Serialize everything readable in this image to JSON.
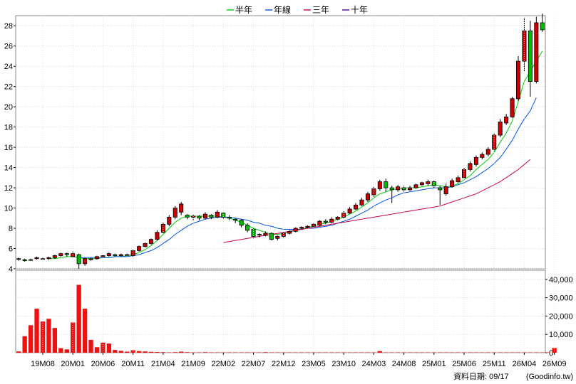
{
  "chart_data": [
    {
      "type": "candlestick",
      "title": "",
      "xlabel": "",
      "ylabel": "",
      "ylim": [
        4,
        29
      ],
      "y_ticks": [
        "4",
        "6",
        "8",
        "10",
        "12",
        "14",
        "16",
        "18",
        "20",
        "22",
        "24",
        "26",
        "28"
      ],
      "x_tick_labels": [
        "19M08",
        "20M01",
        "20M06",
        "20M11",
        "21M04",
        "21M09",
        "22M02",
        "22M07",
        "22M12",
        "23M05",
        "23M10",
        "24M03",
        "24M08",
        "25M01",
        "25M06",
        "25M11",
        "26M04",
        "26M09"
      ],
      "x_tick_index": [
        4,
        9,
        14,
        19,
        24,
        29,
        34,
        39,
        44,
        49,
        54,
        59,
        64,
        69,
        74,
        79,
        84,
        89
      ],
      "legend": [
        {
          "label": "半年",
          "color": "#00cc00"
        },
        {
          "label": "年線",
          "color": "#0055dd"
        },
        {
          "label": "三年",
          "color": "#cc0055"
        },
        {
          "label": "十年",
          "color": "#550099"
        }
      ],
      "up_color": "#cc0000",
      "down_color": "#00bb00",
      "candles": [
        [
          5.0,
          5.0,
          4.8,
          5.1
        ],
        [
          4.9,
          4.8,
          4.7,
          5.0
        ],
        [
          4.9,
          4.9,
          4.8,
          5.0
        ],
        [
          5.0,
          5.1,
          4.9,
          5.2
        ],
        [
          5.0,
          5.0,
          4.9,
          5.1
        ],
        [
          5.0,
          5.1,
          4.9,
          5.2
        ],
        [
          5.1,
          5.3,
          5.0,
          5.4
        ],
        [
          5.3,
          5.5,
          5.2,
          5.6
        ],
        [
          5.5,
          5.4,
          5.2,
          5.6
        ],
        [
          5.2,
          5.5,
          5.1,
          5.7
        ],
        [
          5.4,
          4.5,
          4.0,
          5.5
        ],
        [
          4.5,
          5.0,
          4.3,
          5.1
        ],
        [
          4.9,
          5.0,
          4.8,
          5.1
        ],
        [
          5.0,
          5.2,
          4.9,
          5.3
        ],
        [
          5.2,
          5.3,
          5.1,
          5.4
        ],
        [
          5.3,
          5.5,
          5.2,
          5.6
        ],
        [
          5.4,
          5.3,
          5.2,
          5.5
        ],
        [
          5.3,
          5.4,
          5.2,
          5.5
        ],
        [
          5.4,
          5.4,
          5.3,
          5.5
        ],
        [
          5.3,
          5.8,
          5.2,
          5.9
        ],
        [
          5.8,
          6.2,
          5.7,
          6.3
        ],
        [
          6.2,
          6.5,
          6.1,
          6.6
        ],
        [
          6.5,
          6.9,
          6.4,
          7.0
        ],
        [
          6.9,
          7.6,
          6.8,
          7.8
        ],
        [
          7.6,
          8.4,
          7.5,
          8.6
        ],
        [
          8.4,
          9.1,
          8.2,
          9.3
        ],
        [
          9.1,
          10.0,
          8.9,
          10.2
        ],
        [
          9.6,
          10.4,
          9.3,
          10.6
        ],
        [
          9.3,
          9.1,
          8.9,
          9.4
        ],
        [
          9.1,
          9.2,
          8.8,
          9.4
        ],
        [
          9.2,
          9.0,
          8.8,
          9.3
        ],
        [
          9.0,
          9.4,
          8.9,
          9.6
        ],
        [
          9.3,
          9.1,
          8.9,
          9.4
        ],
        [
          9.1,
          9.6,
          9.0,
          9.8
        ],
        [
          9.5,
          9.1,
          8.9,
          9.6
        ],
        [
          9.1,
          9.0,
          8.8,
          9.3
        ],
        [
          8.9,
          8.8,
          8.5,
          9.0
        ],
        [
          8.8,
          8.3,
          8.1,
          8.9
        ],
        [
          8.3,
          7.8,
          7.6,
          8.5
        ],
        [
          7.9,
          7.2,
          7.0,
          8.0
        ],
        [
          7.4,
          7.4,
          7.1,
          7.5
        ],
        [
          7.3,
          7.5,
          7.2,
          7.7
        ],
        [
          7.5,
          6.9,
          6.8,
          7.6
        ],
        [
          7.0,
          7.2,
          6.8,
          7.3
        ],
        [
          7.2,
          7.5,
          7.1,
          7.6
        ],
        [
          7.5,
          7.7,
          7.4,
          7.8
        ],
        [
          7.7,
          8.0,
          7.6,
          8.1
        ],
        [
          8.0,
          8.1,
          7.9,
          8.2
        ],
        [
          8.1,
          8.2,
          8.0,
          8.3
        ],
        [
          8.2,
          8.4,
          8.1,
          8.5
        ],
        [
          8.3,
          8.7,
          8.2,
          8.8
        ],
        [
          8.7,
          8.6,
          8.4,
          8.9
        ],
        [
          8.6,
          8.9,
          8.5,
          9.1
        ],
        [
          8.9,
          9.1,
          8.8,
          9.2
        ],
        [
          9.1,
          9.5,
          9.0,
          9.7
        ],
        [
          9.5,
          9.9,
          9.4,
          10.1
        ],
        [
          9.9,
          10.3,
          9.8,
          10.5
        ],
        [
          10.3,
          10.8,
          10.2,
          11.0
        ],
        [
          10.8,
          11.4,
          10.6,
          11.6
        ],
        [
          11.3,
          11.9,
          11.1,
          12.1
        ],
        [
          11.9,
          12.6,
          11.7,
          12.8
        ],
        [
          12.6,
          12.0,
          11.6,
          12.9
        ],
        [
          12.0,
          11.8,
          10.5,
          12.2
        ],
        [
          11.8,
          12.1,
          11.6,
          12.3
        ],
        [
          12.0,
          11.8,
          11.6,
          12.2
        ],
        [
          11.8,
          12.0,
          11.7,
          12.2
        ],
        [
          12.0,
          12.3,
          11.9,
          12.4
        ],
        [
          12.3,
          12.5,
          12.2,
          12.6
        ],
        [
          12.4,
          12.6,
          12.2,
          12.8
        ],
        [
          12.6,
          12.2,
          12.0,
          12.7
        ],
        [
          12.0,
          11.8,
          10.3,
          12.2
        ],
        [
          11.4,
          12.1,
          11.2,
          12.4
        ],
        [
          12.1,
          12.7,
          12.0,
          12.9
        ],
        [
          12.6,
          13.0,
          12.5,
          13.2
        ],
        [
          13.0,
          13.8,
          12.9,
          14.0
        ],
        [
          13.8,
          14.4,
          13.6,
          14.6
        ],
        [
          14.3,
          15.0,
          14.1,
          15.2
        ],
        [
          15.0,
          15.3,
          14.8,
          15.5
        ],
        [
          15.3,
          15.8,
          15.1,
          16.0
        ],
        [
          15.8,
          17.2,
          15.6,
          17.4
        ],
        [
          17.2,
          18.5,
          17.0,
          18.8
        ],
        [
          18.4,
          19.0,
          18.2,
          19.3
        ],
        [
          19.0,
          20.8,
          18.9,
          21.0
        ],
        [
          20.8,
          24.5,
          20.6,
          25.0
        ],
        [
          24.5,
          27.5,
          23.5,
          28.8
        ],
        [
          27.5,
          22.5,
          21.0,
          28.5
        ],
        [
          22.5,
          28.3,
          22.3,
          28.9
        ],
        [
          28.3,
          27.6,
          27.4,
          29.2
        ]
      ],
      "series": [
        {
          "name": "半年",
          "values": [
            null,
            null,
            null,
            null,
            null,
            5.0,
            5.0,
            5.1,
            5.2,
            5.2,
            5.1,
            5.0,
            5.0,
            5.0,
            5.1,
            5.1,
            5.2,
            5.2,
            5.3,
            5.4,
            5.6,
            5.9,
            6.3,
            6.8,
            7.4,
            8.0,
            8.6,
            9.0,
            9.2,
            9.2,
            9.2,
            9.2,
            9.2,
            9.2,
            9.1,
            9.0,
            8.8,
            8.6,
            8.3,
            8.0,
            7.8,
            7.6,
            7.4,
            7.4,
            7.5,
            7.6,
            7.8,
            7.9,
            8.1,
            8.2,
            8.4,
            8.5,
            8.7,
            8.9,
            9.1,
            9.4,
            9.7,
            10.1,
            10.5,
            11.0,
            11.4,
            11.6,
            11.8,
            11.9,
            12.0,
            12.0,
            12.0,
            12.1,
            12.2,
            12.3,
            12.2,
            12.1,
            12.2,
            12.4,
            12.8,
            13.2,
            13.8,
            14.3,
            14.8,
            15.5,
            16.5,
            17.4,
            18.6,
            20.5,
            22.5,
            23.5,
            24.5,
            25.5
          ]
        },
        {
          "name": "年線",
          "values": [
            null,
            null,
            null,
            null,
            null,
            null,
            null,
            null,
            null,
            null,
            5.1,
            5.1,
            5.1,
            5.1,
            5.1,
            5.1,
            5.2,
            5.2,
            5.2,
            5.3,
            5.4,
            5.6,
            5.8,
            6.1,
            6.5,
            6.9,
            7.4,
            7.8,
            8.2,
            8.5,
            8.7,
            8.9,
            9.0,
            9.1,
            9.1,
            9.1,
            9.0,
            8.9,
            8.8,
            8.6,
            8.5,
            8.3,
            8.2,
            8.0,
            7.9,
            7.9,
            7.9,
            7.9,
            8.0,
            8.0,
            8.1,
            8.2,
            8.3,
            8.5,
            8.7,
            8.9,
            9.2,
            9.5,
            9.8,
            10.2,
            10.5,
            10.8,
            11.0,
            11.3,
            11.5,
            11.6,
            11.7,
            11.8,
            11.9,
            12.0,
            12.0,
            12.0,
            12.1,
            12.3,
            12.5,
            12.8,
            13.1,
            13.5,
            13.9,
            14.4,
            15.0,
            15.8,
            16.7,
            17.8,
            18.8,
            19.6,
            20.9
          ]
        },
        {
          "name": "三年",
          "values": [
            null,
            null,
            null,
            null,
            null,
            null,
            null,
            null,
            null,
            null,
            null,
            null,
            null,
            null,
            null,
            null,
            null,
            null,
            null,
            null,
            null,
            null,
            null,
            null,
            null,
            null,
            null,
            null,
            null,
            null,
            null,
            null,
            null,
            null,
            6.6,
            6.7,
            6.8,
            6.9,
            7.0,
            7.1,
            7.2,
            7.3,
            7.4,
            7.5,
            7.6,
            7.7,
            7.8,
            7.9,
            8.0,
            8.1,
            8.2,
            8.3,
            8.4,
            8.5,
            8.6,
            8.7,
            8.8,
            8.9,
            9.0,
            9.1,
            9.2,
            9.3,
            9.4,
            9.5,
            9.6,
            9.7,
            9.8,
            9.9,
            10.0,
            10.1,
            10.2,
            10.4,
            10.6,
            10.8,
            11.0,
            11.2,
            11.4,
            11.7,
            12.0,
            12.3,
            12.6,
            13.0,
            13.4,
            13.8,
            14.3,
            14.8
          ]
        },
        {
          "name": "十年",
          "values": []
        }
      ]
    },
    {
      "type": "bar",
      "ylim": [
        0,
        45000
      ],
      "y_ticks": [
        "0",
        "10,000",
        "20,000",
        "30,000",
        "40,000"
      ],
      "bar_color": "#ee1111",
      "values": [
        700,
        9000,
        15000,
        24000,
        17000,
        18500,
        13500,
        2500,
        1800,
        16500,
        37000,
        24000,
        7000,
        3000,
        5500,
        5000,
        1500,
        1000,
        600,
        1400,
        900,
        700,
        500,
        400,
        300,
        200,
        300,
        600,
        300,
        200,
        200,
        300,
        200,
        200,
        200,
        200,
        200,
        200,
        200,
        200,
        200,
        300,
        200,
        200,
        200,
        200,
        200,
        200,
        200,
        200,
        200,
        200,
        200,
        200,
        200,
        200,
        200,
        200,
        200,
        200,
        900,
        200,
        200,
        200,
        200,
        200,
        200,
        200,
        200,
        200,
        200,
        200,
        200,
        200,
        200,
        200,
        200,
        200,
        200,
        200,
        200,
        200,
        200,
        200,
        200,
        200,
        200,
        200,
        200,
        2600
      ]
    }
  ],
  "footer": {
    "date_label": "資料日期: 09/17",
    "source": "(Goodinfo.tw)"
  }
}
